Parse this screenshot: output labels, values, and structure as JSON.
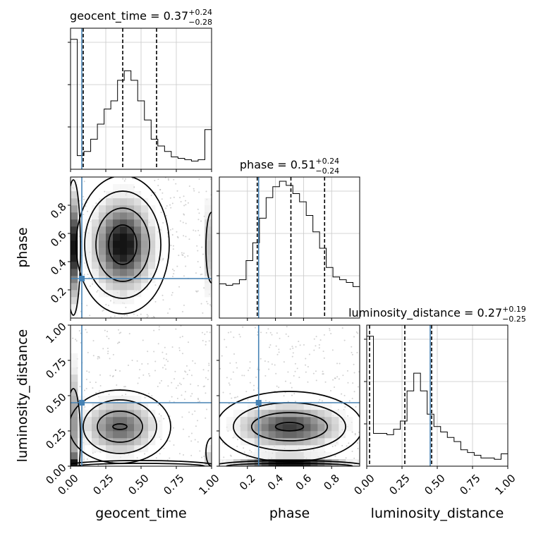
{
  "chart_data": {
    "type": "corner",
    "parameters": [
      "geocent_time",
      "phase",
      "luminosity_distance"
    ],
    "truth": {
      "geocent_time": 0.08,
      "phase": 0.28,
      "luminosity_distance": 0.45
    },
    "truth_color": "#4682b4",
    "grid": true,
    "titles": [
      {
        "param": "geocent_time",
        "text": "geocent_time = 0.37",
        "plus": "+0.24",
        "minus": "−0.28",
        "quantiles": [
          0.09,
          0.37,
          0.61
        ]
      },
      {
        "param": "phase",
        "text": "phase = 0.51",
        "plus": "+0.24",
        "minus": "−0.24",
        "quantiles": [
          0.27,
          0.51,
          0.75
        ]
      },
      {
        "param": "luminosity_distance",
        "text": "luminosity_distance = 0.27",
        "plus": "+0.19",
        "minus": "−0.25",
        "quantiles": [
          0.02,
          0.27,
          0.46
        ]
      }
    ],
    "axes": {
      "geocent_time": {
        "range": [
          0,
          1
        ],
        "ticks": [
          0,
          0.25,
          0.5,
          0.75,
          1.0
        ],
        "tick_labels": [
          "0.00",
          "0.25",
          "0.50",
          "0.75",
          "1.00"
        ],
        "label": "geocent_time"
      },
      "phase": {
        "range": [
          0,
          1
        ],
        "ticks": [
          0.2,
          0.4,
          0.6,
          0.8
        ],
        "tick_labels": [
          "0.2",
          "0.4",
          "0.6",
          "0.8"
        ],
        "label": "phase"
      },
      "luminosity_distance": {
        "range": [
          0,
          1
        ],
        "ticks": [
          0,
          0.25,
          0.5,
          0.75,
          1.0
        ],
        "tick_labels": [
          "0.00",
          "0.25",
          "0.50",
          "0.75",
          "1.00"
        ],
        "label": "luminosity_distance"
      }
    },
    "histograms": {
      "geocent_time": [
        0.95,
        0.1,
        0.13,
        0.22,
        0.33,
        0.44,
        0.5,
        0.65,
        0.72,
        0.65,
        0.5,
        0.36,
        0.22,
        0.17,
        0.13,
        0.09,
        0.08,
        0.07,
        0.06,
        0.07,
        0.29
      ],
      "phase": [
        0.25,
        0.24,
        0.25,
        0.28,
        0.42,
        0.55,
        0.73,
        0.88,
        0.96,
        1.0,
        0.97,
        0.91,
        0.85,
        0.75,
        0.63,
        0.51,
        0.37,
        0.3,
        0.28,
        0.26,
        0.23
      ],
      "luminosity_distance": [
        0.95,
        0.24,
        0.24,
        0.23,
        0.27,
        0.33,
        0.55,
        0.68,
        0.55,
        0.38,
        0.29,
        0.25,
        0.21,
        0.18,
        0.12,
        0.1,
        0.08,
        0.06,
        0.06,
        0.05,
        0.09
      ]
    }
  }
}
